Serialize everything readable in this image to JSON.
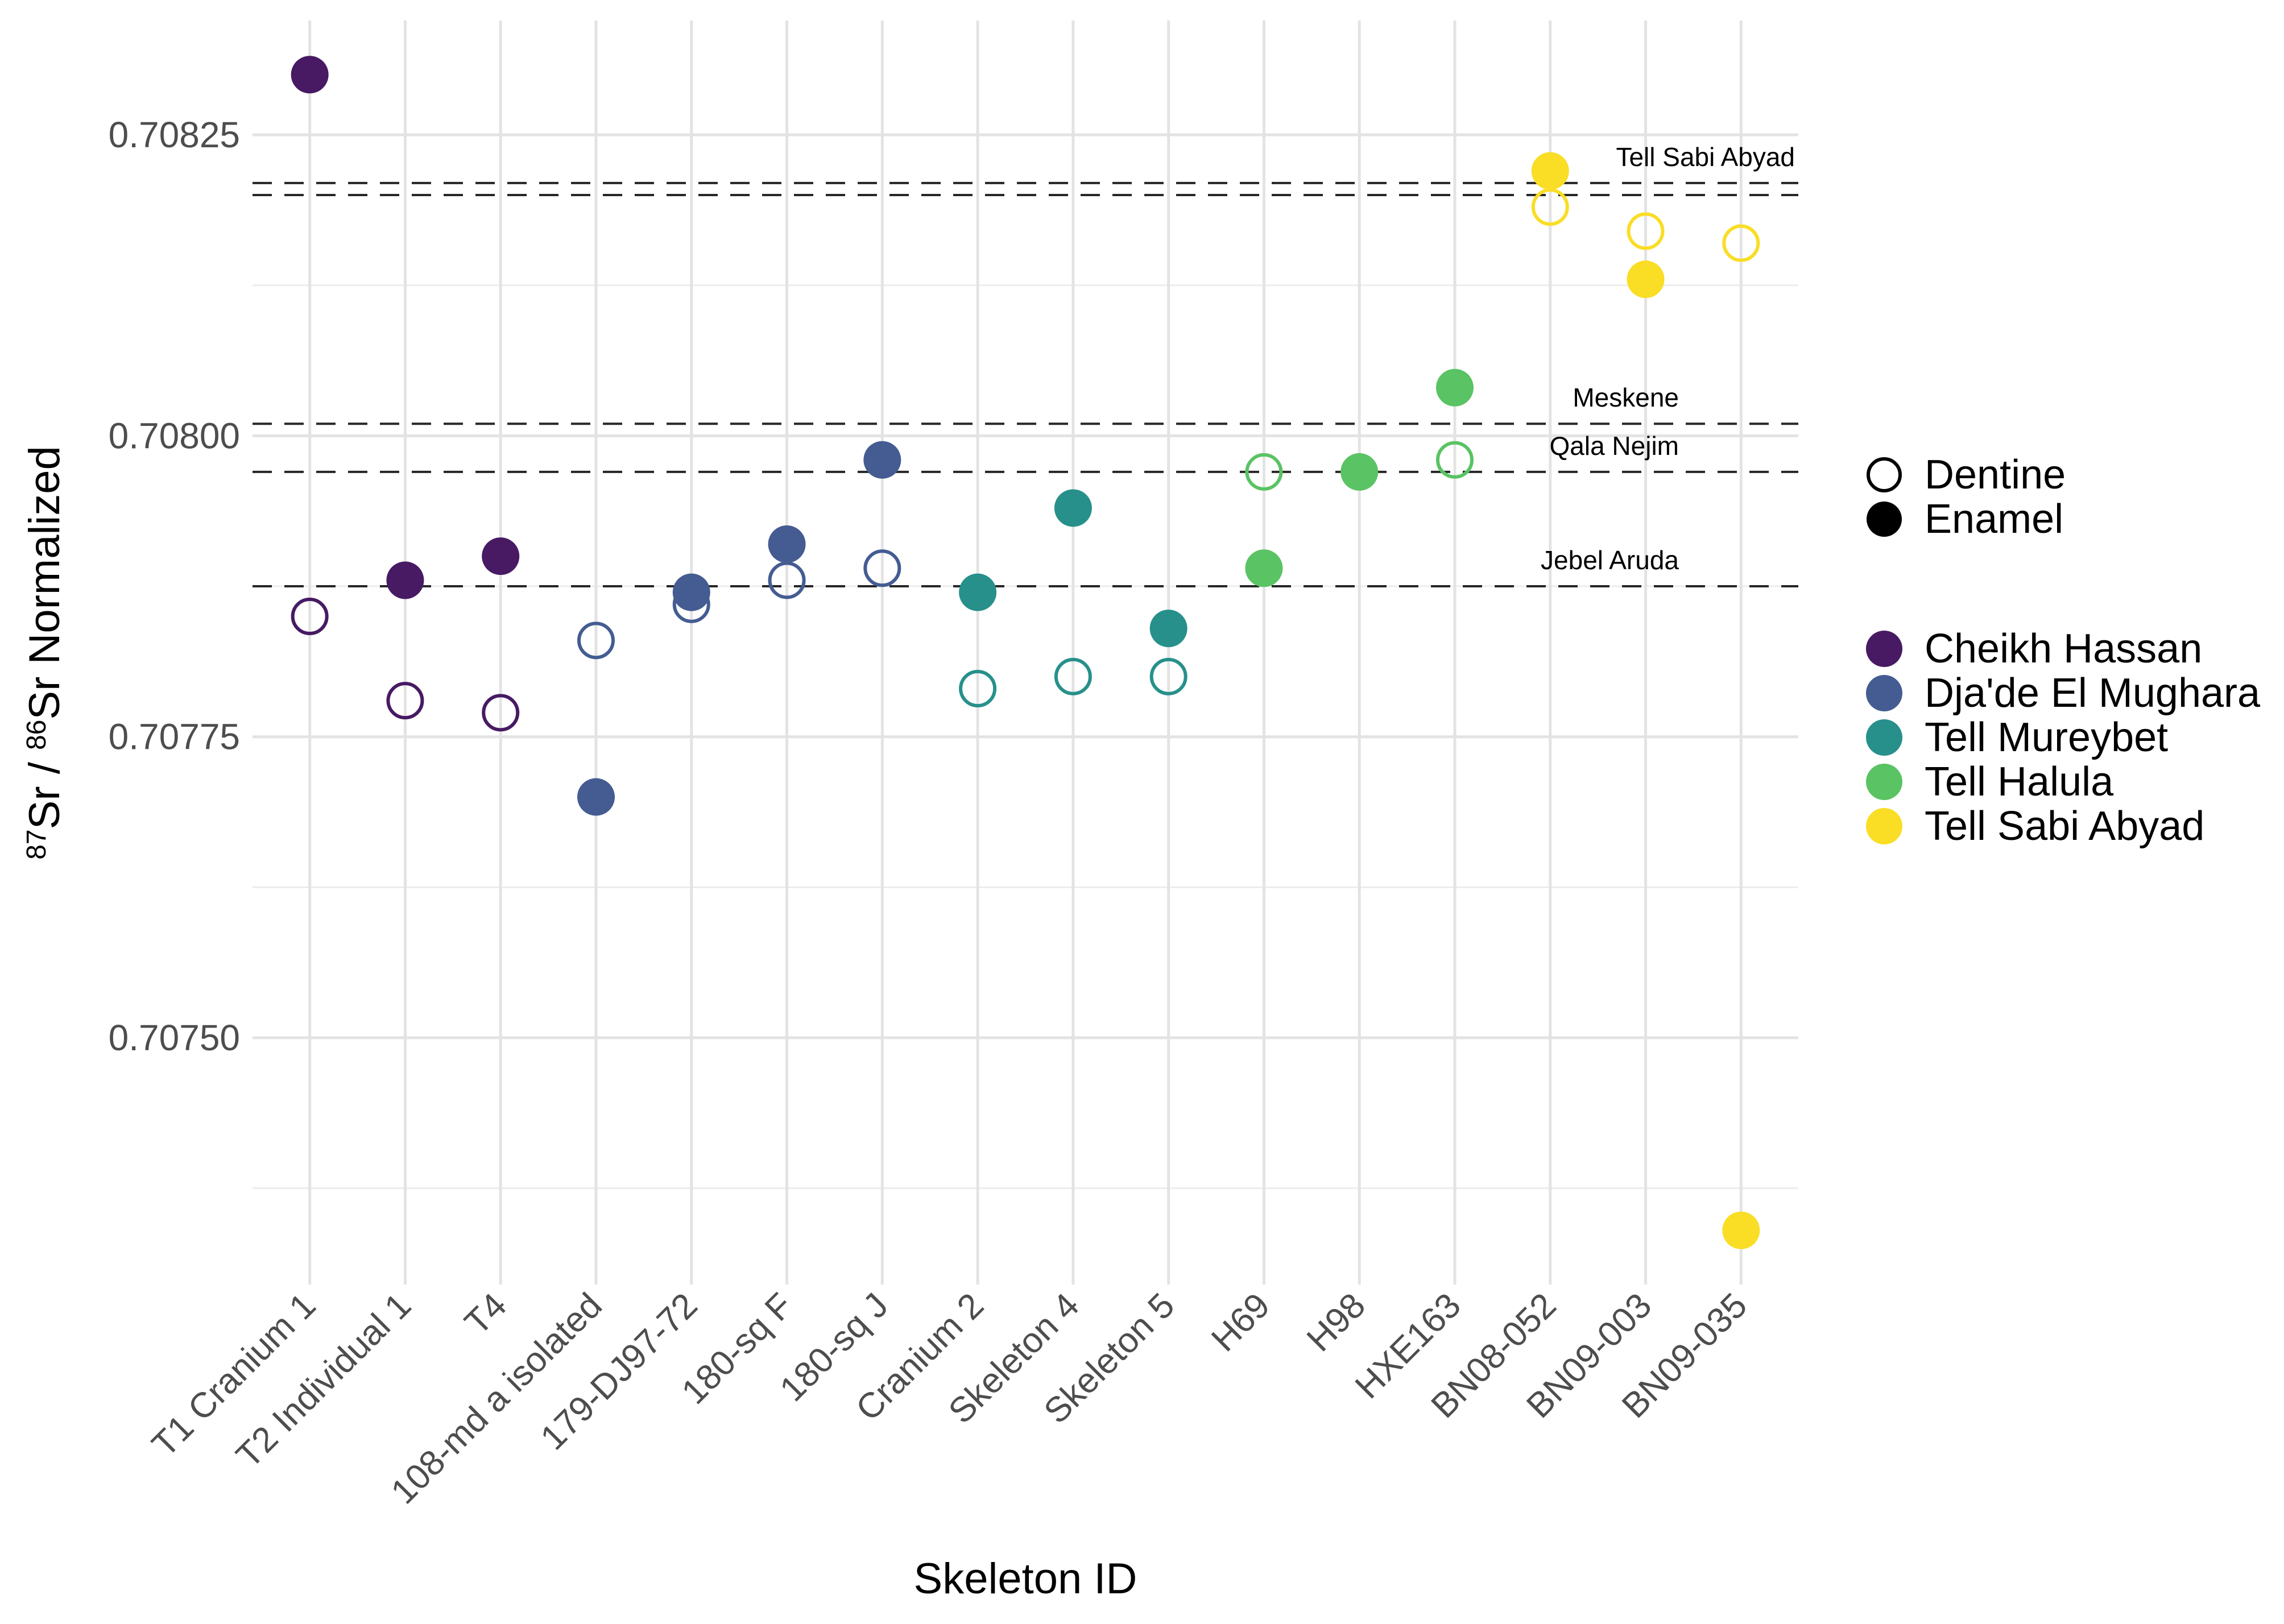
{
  "chart_data": {
    "type": "scatter",
    "title": "",
    "xlabel": "Skeleton ID",
    "ylabel": "87Sr / 86Sr Normalized",
    "ylabel_parts": {
      "sup1": "87",
      "mid1": "Sr / ",
      "sup2": "86",
      "mid2": "Sr Normalized"
    },
    "categories": [
      "T1 Cranium 1",
      "T2 Individual 1",
      "T4",
      "108-md a isolated",
      "179-DJ97-72",
      "180-sq F",
      "180-sq J",
      "Cranium 2",
      "Skeleton 4",
      "Skeleton 5",
      "H69",
      "H98",
      "HXE163",
      "BN08-052",
      "BN09-003",
      "BN09-035"
    ],
    "category_sites": [
      "Cheikh Hassan",
      "Cheikh Hassan",
      "Cheikh Hassan",
      "Dja'de El Mughara",
      "Dja'de El Mughara",
      "Dja'de El Mughara",
      "Dja'de El Mughara",
      "Tell Mureybet",
      "Tell Mureybet",
      "Tell Mureybet",
      "Tell Halula",
      "Tell Halula",
      "Tell Halula",
      "Tell Sabi Abyad",
      "Tell Sabi Abyad",
      "Tell Sabi Abyad"
    ],
    "series": [
      {
        "name": "Dentine",
        "marker": "open",
        "values": [
          0.70785,
          0.70778,
          0.70777,
          0.70783,
          0.70786,
          0.70788,
          0.70789,
          0.70779,
          0.7078,
          0.7078,
          0.70797,
          null,
          0.70798,
          0.70819,
          0.70817,
          0.70816
        ]
      },
      {
        "name": "Enamel",
        "marker": "filled",
        "values": [
          0.7083,
          0.70788,
          0.7079,
          0.7077,
          0.70787,
          0.70791,
          0.70798,
          0.70787,
          0.70794,
          0.70784,
          0.70789,
          0.70797,
          0.70804,
          0.70822,
          0.70813,
          0.70734
        ]
      }
    ],
    "sites": [
      {
        "name": "Cheikh Hassan",
        "color": "#471A63"
      },
      {
        "name": "Dja'de El Mughara",
        "color": "#445C92"
      },
      {
        "name": "Tell Mureybet",
        "color": "#27908B"
      },
      {
        "name": "Tell Halula",
        "color": "#5AC363"
      },
      {
        "name": "Tell Sabi Abyad",
        "color": "#FADD25"
      }
    ],
    "reference_lines": [
      {
        "label": "Tell Sabi Abyad",
        "values": [
          0.70821,
          0.7082
        ]
      },
      {
        "label": "Meskene",
        "values": [
          0.70801
        ]
      },
      {
        "label": "Qala Nejim",
        "values": [
          0.70797
        ]
      },
      {
        "label": "Jebel Aruda",
        "values": [
          0.707875
        ]
      }
    ],
    "y_ticks": [
      0.7075,
      0.70775,
      0.708,
      0.70825
    ],
    "y_tick_labels": [
      "0.70750",
      "0.70775",
      "0.70800",
      "0.70825"
    ],
    "ylim": [
      0.707295,
      0.708345
    ],
    "grid": true,
    "legend_position": "right",
    "style": {
      "grid_major_color": "#E3E3E3",
      "grid_minor_color": "#EDEDED",
      "ref_line_color": "#262626",
      "tick_label_color": "#4D4D4D",
      "text_color": "#000000"
    }
  },
  "legend": {
    "shape_items": [
      {
        "label": "Dentine"
      },
      {
        "label": "Enamel"
      }
    ]
  }
}
